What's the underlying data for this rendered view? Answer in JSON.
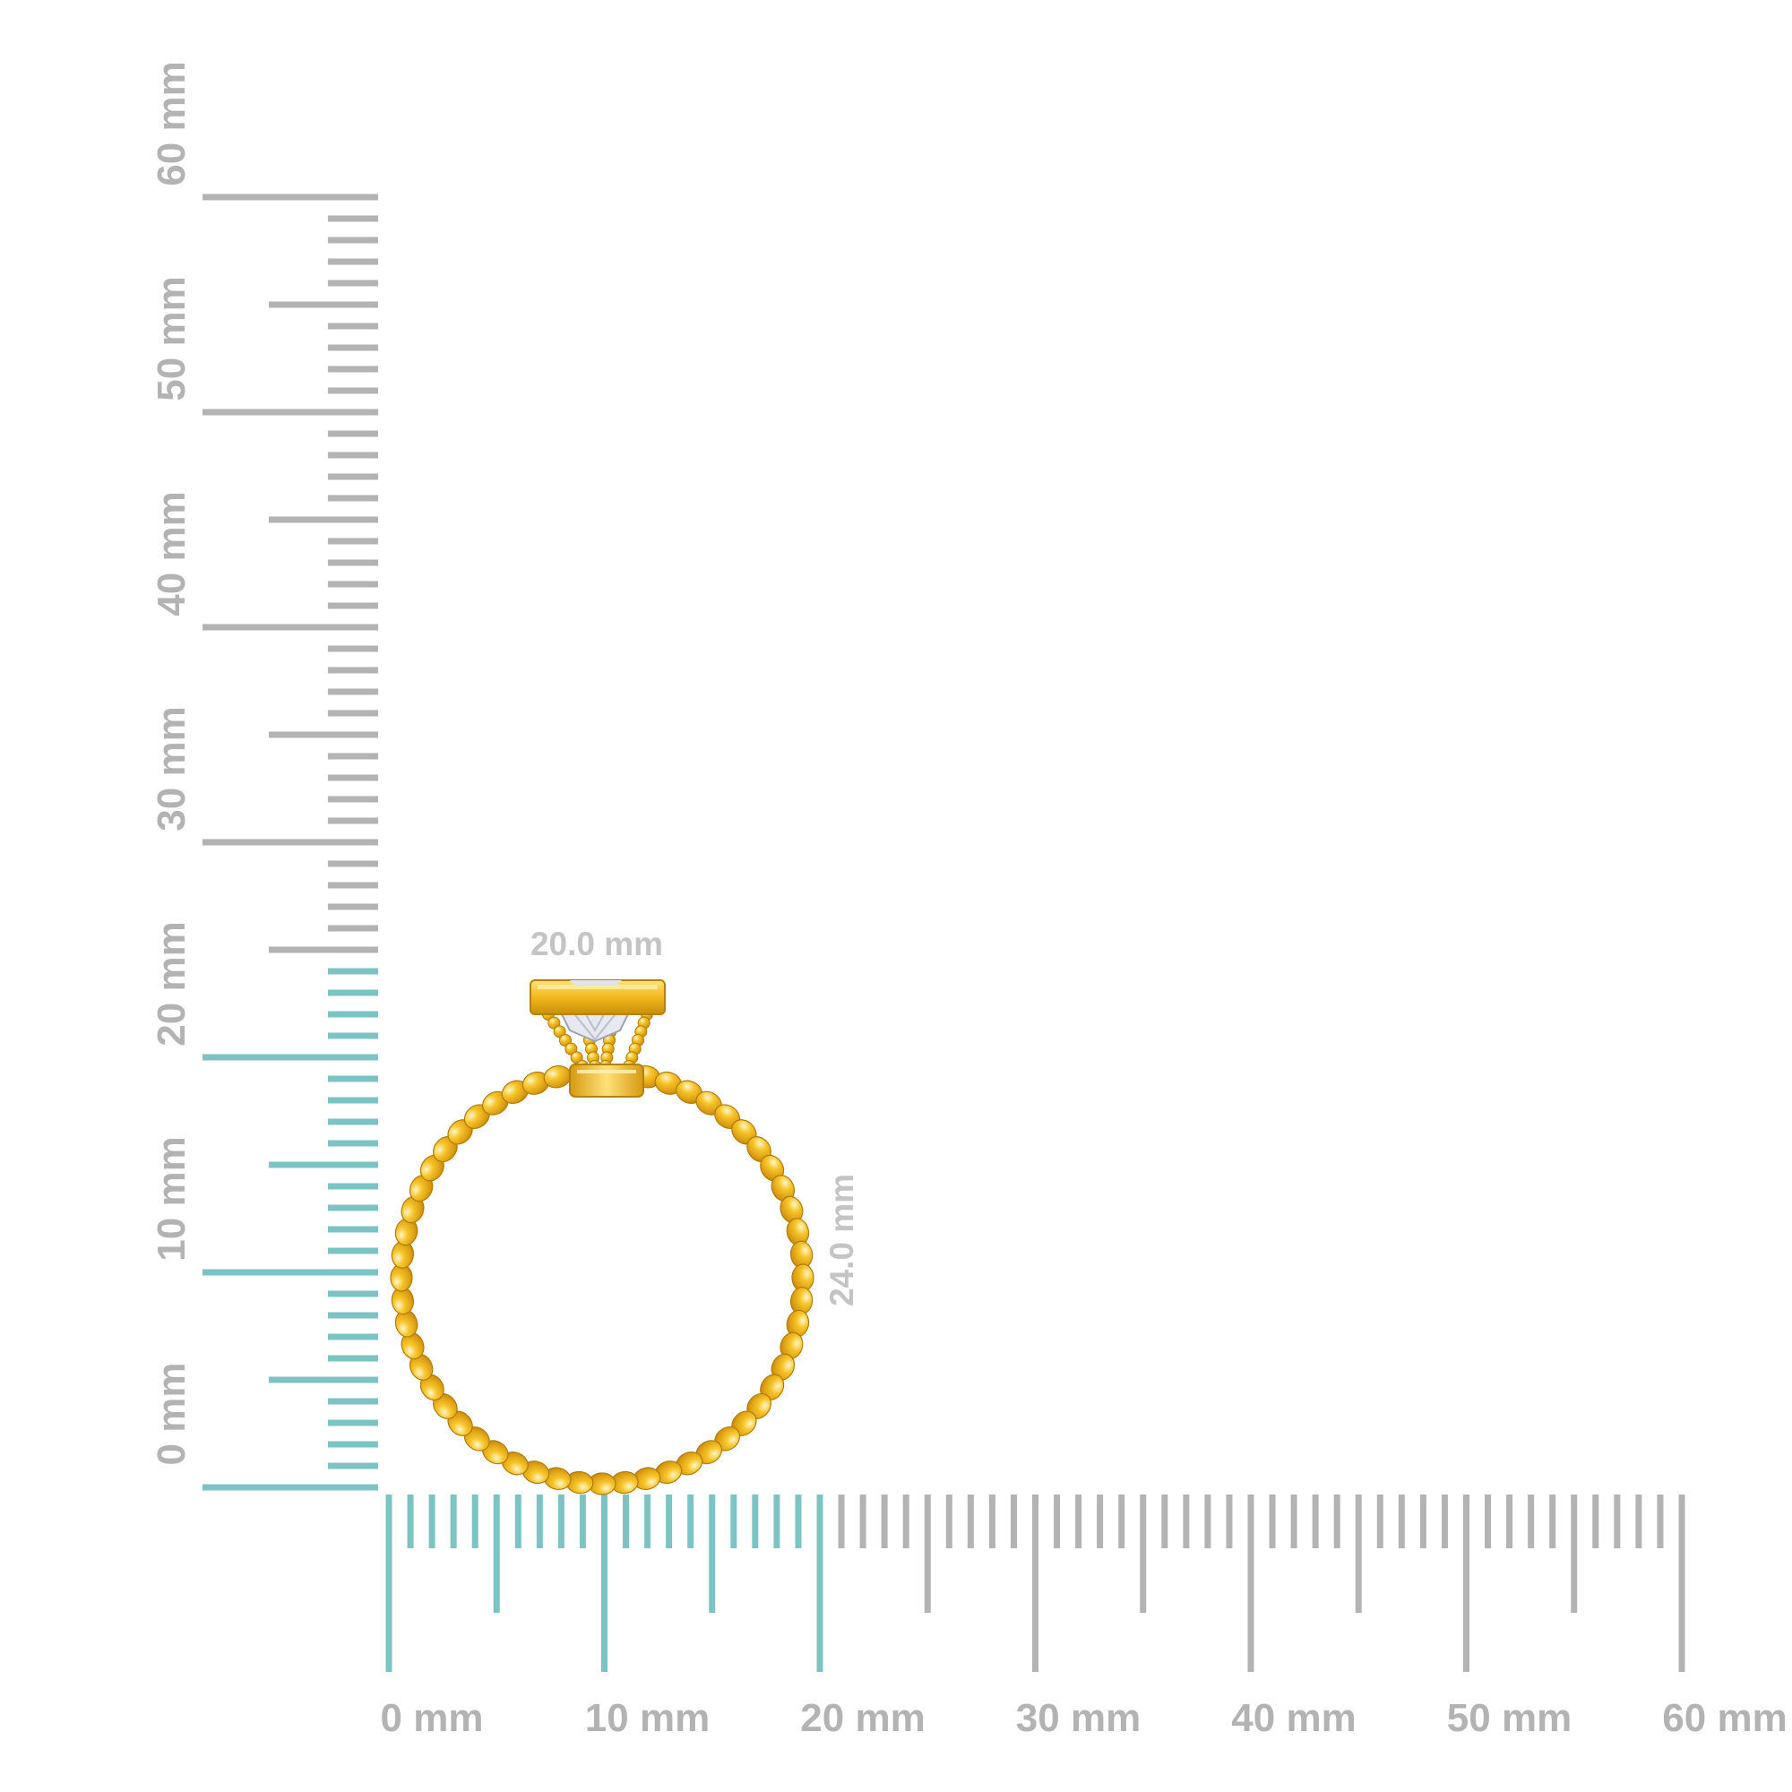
{
  "rulers": {
    "vertical_labels": [
      "0 mm",
      "10 mm",
      "20 mm",
      "30 mm",
      "40 mm",
      "50 mm",
      "60 mm"
    ],
    "horizontal_labels": [
      "0 mm",
      "10 mm",
      "20 mm",
      "30 mm",
      "40 mm",
      "50 mm",
      "60 mm"
    ],
    "range_mm": [
      0,
      60
    ],
    "highlight_vertical_mm": 24,
    "highlight_horizontal_mm": 20,
    "highlight_color": "#7cc4c4",
    "tick_color": "#b3b3b3"
  },
  "ring": {
    "width_label": "20.0 mm",
    "height_label": "24.0 mm",
    "metal_color": "#f2b81c",
    "stone_color": "#e8ecf2"
  }
}
